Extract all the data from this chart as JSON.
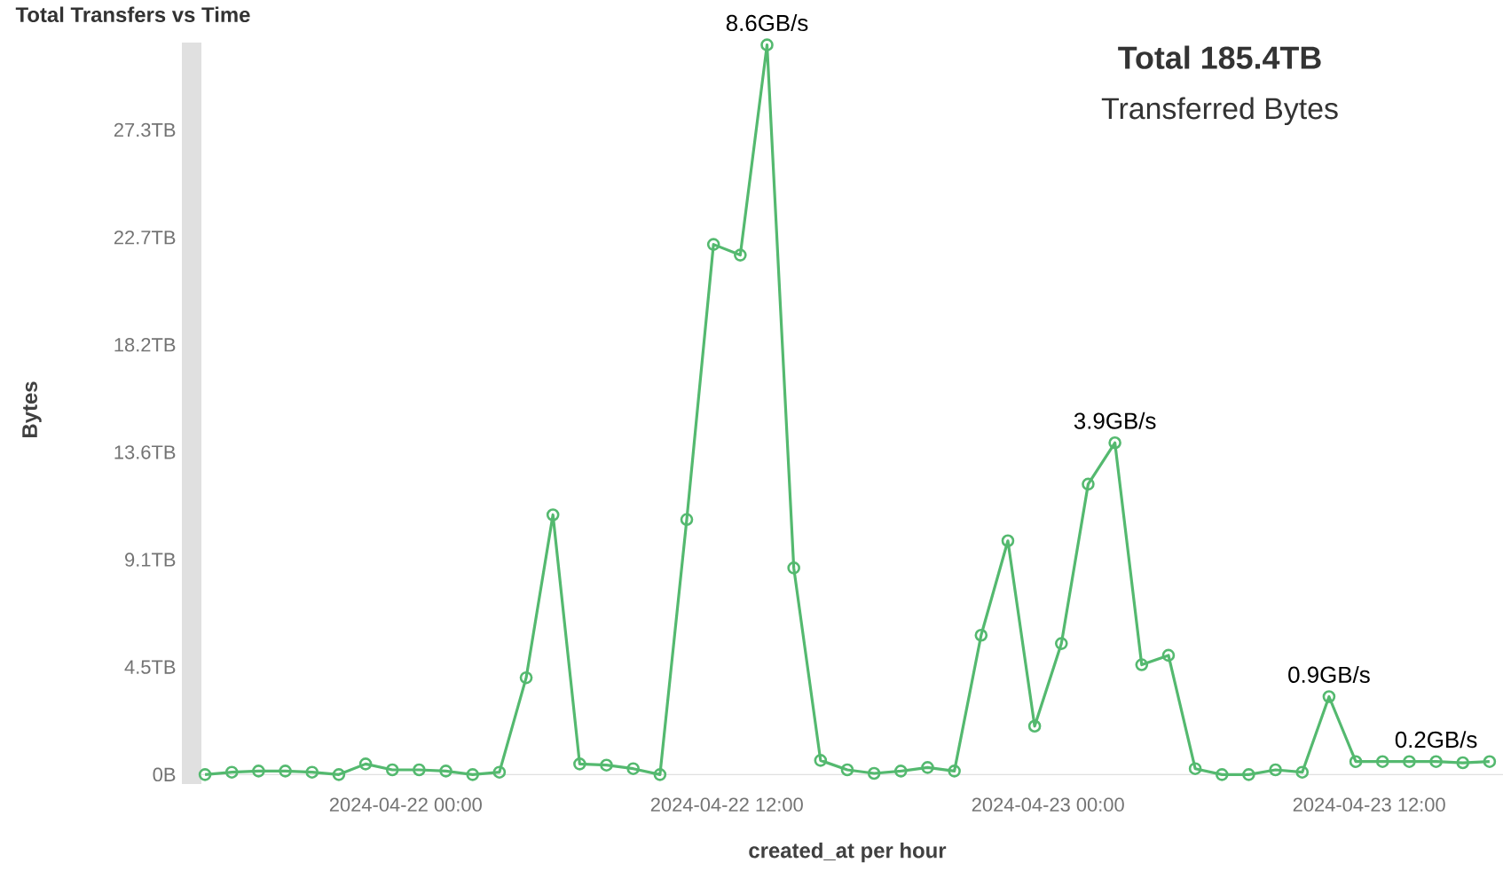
{
  "chart_data": {
    "type": "line",
    "title": "Total Transfers vs Time",
    "xlabel": "created_at per hour",
    "ylabel": "Bytes",
    "x": [
      "2024-04-21T16:30",
      "2024-04-21T17:30",
      "2024-04-21T18:30",
      "2024-04-21T19:30",
      "2024-04-21T20:30",
      "2024-04-21T21:30",
      "2024-04-21T22:30",
      "2024-04-21T23:30",
      "2024-04-22T00:30",
      "2024-04-22T01:30",
      "2024-04-22T02:30",
      "2024-04-22T03:30",
      "2024-04-22T04:30",
      "2024-04-22T05:30",
      "2024-04-22T06:30",
      "2024-04-22T07:30",
      "2024-04-22T08:30",
      "2024-04-22T09:30",
      "2024-04-22T10:30",
      "2024-04-22T11:30",
      "2024-04-22T12:30",
      "2024-04-22T13:30",
      "2024-04-22T14:30",
      "2024-04-22T15:30",
      "2024-04-22T16:30",
      "2024-04-22T17:30",
      "2024-04-22T18:30",
      "2024-04-22T19:30",
      "2024-04-22T20:30",
      "2024-04-22T21:30",
      "2024-04-22T22:30",
      "2024-04-22T23:30",
      "2024-04-23T00:30",
      "2024-04-23T01:30",
      "2024-04-23T02:30",
      "2024-04-23T03:30",
      "2024-04-23T04:30",
      "2024-04-23T05:30",
      "2024-04-23T06:30",
      "2024-04-23T07:30",
      "2024-04-23T08:30",
      "2024-04-23T09:30",
      "2024-04-23T10:30",
      "2024-04-23T11:30",
      "2024-04-23T12:30",
      "2024-04-23T13:30",
      "2024-04-23T14:30",
      "2024-04-23T15:30",
      "2024-04-23T16:30"
    ],
    "series": [
      {
        "color": "#54b96f",
        "values": [
          0,
          0.1,
          0.15,
          0.15,
          0.1,
          0,
          0.45,
          0.2,
          0.2,
          0.15,
          0,
          0.1,
          4.1,
          11.0,
          0.45,
          0.4,
          0.25,
          0,
          10.8,
          22.45,
          22.0,
          30.9,
          8.75,
          0.6,
          0.2,
          0.05,
          0.15,
          0.3,
          0.15,
          5.9,
          9.9,
          2.05,
          5.55,
          12.3,
          14.05,
          4.65,
          5.05,
          0.25,
          0,
          0,
          0.2,
          0.1,
          3.3,
          0.55,
          0.55,
          0.55,
          0.55,
          0.5,
          0.55
        ]
      }
    ],
    "xlim": [
      "2024-04-21T16:00",
      "2024-04-23T17:00"
    ],
    "ylim": [
      -0.4,
      31
    ],
    "xticks": [
      {
        "value": "2024-04-22T00:00",
        "label": "2024-04-22 00:00"
      },
      {
        "value": "2024-04-22T12:00",
        "label": "2024-04-22 12:00"
      },
      {
        "value": "2024-04-23T00:00",
        "label": "2024-04-23 00:00"
      },
      {
        "value": "2024-04-23T12:00",
        "label": "2024-04-23 12:00"
      }
    ],
    "yticks": [
      {
        "value": 0,
        "label": "0B"
      },
      {
        "value": 4.55,
        "label": "4.5TB"
      },
      {
        "value": 9.1,
        "label": "9.1TB"
      },
      {
        "value": 13.65,
        "label": "13.6TB"
      },
      {
        "value": 18.2,
        "label": "18.2TB"
      },
      {
        "value": 22.75,
        "label": "22.7TB"
      },
      {
        "value": 27.3,
        "label": "27.3TB"
      }
    ],
    "marker": "circle",
    "line_style": "solid",
    "annotations": [
      "Total 185.4TB",
      "Transferred Bytes",
      {
        "text": "8.6GB/s",
        "x": "2024-04-22T13:30",
        "y": 30.9
      },
      {
        "text": "3.9GB/s",
        "x": "2024-04-23T02:30",
        "y": 14.05
      },
      {
        "text": "0.9GB/s",
        "x": "2024-04-23T10:30",
        "y": 3.3
      },
      {
        "text": "0.2GB/s",
        "x": "2024-04-23T14:30",
        "y": 0.55
      }
    ]
  }
}
